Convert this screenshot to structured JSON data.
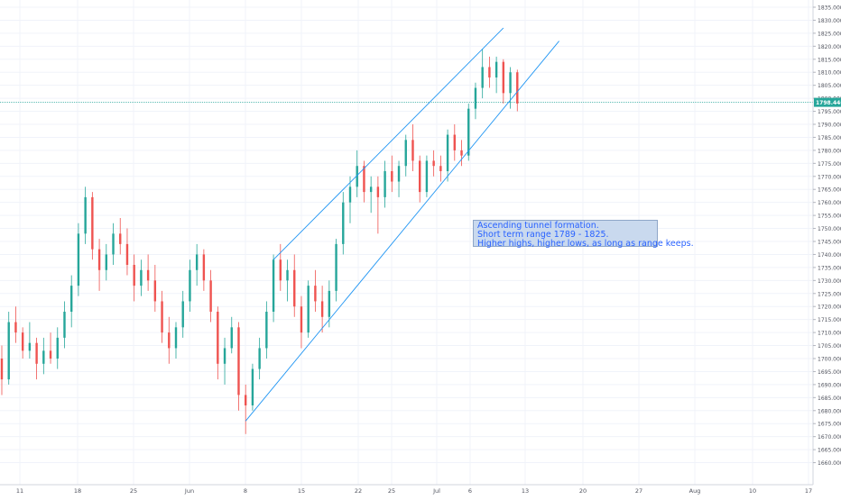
{
  "chart_data": {
    "type": "candlestick",
    "title": "",
    "instrument_value_label": "1798.446",
    "colors": {
      "up": "#26a69a",
      "down": "#ef5350",
      "trendline": "#2196f3",
      "price_line": "#26a69a"
    },
    "ylim": [
      1655,
      1835
    ],
    "y_ticks": [
      "1660.000",
      "1665.000",
      "1670.000",
      "1675.000",
      "1680.000",
      "1685.000",
      "1690.000",
      "1695.000",
      "1700.000",
      "1705.000",
      "1710.000",
      "1715.000",
      "1720.000",
      "1725.000",
      "1730.000",
      "1735.000",
      "1740.000",
      "1745.000",
      "1750.000",
      "1755.000",
      "1760.000",
      "1765.000",
      "1770.000",
      "1775.000",
      "1780.000",
      "1785.000",
      "1790.000",
      "1795.000",
      "1800.000",
      "1805.000",
      "1810.000",
      "1815.000",
      "1820.000",
      "1825.000",
      "1830.000",
      "1835.000"
    ],
    "x_tick_labels": [
      "11",
      "18",
      "25",
      "Jun",
      "8",
      "15",
      "22",
      "25",
      "Jul",
      "6",
      "13",
      "20",
      "27",
      "Aug",
      "10",
      "17"
    ],
    "current_price": 1798.446,
    "grid": true,
    "candles": [
      {
        "o": 1700,
        "h": 1705,
        "l": 1686,
        "c": 1692
      },
      {
        "o": 1692,
        "h": 1718,
        "l": 1690,
        "c": 1714
      },
      {
        "o": 1714,
        "h": 1720,
        "l": 1706,
        "c": 1710
      },
      {
        "o": 1710,
        "h": 1712,
        "l": 1700,
        "c": 1703
      },
      {
        "o": 1703,
        "h": 1714,
        "l": 1700,
        "c": 1706
      },
      {
        "o": 1706,
        "h": 1708,
        "l": 1692,
        "c": 1698
      },
      {
        "o": 1698,
        "h": 1708,
        "l": 1694,
        "c": 1703
      },
      {
        "o": 1703,
        "h": 1710,
        "l": 1698,
        "c": 1700
      },
      {
        "o": 1700,
        "h": 1712,
        "l": 1696,
        "c": 1708
      },
      {
        "o": 1708,
        "h": 1722,
        "l": 1704,
        "c": 1718
      },
      {
        "o": 1718,
        "h": 1732,
        "l": 1712,
        "c": 1728
      },
      {
        "o": 1728,
        "h": 1752,
        "l": 1724,
        "c": 1748
      },
      {
        "o": 1748,
        "h": 1766,
        "l": 1744,
        "c": 1762
      },
      {
        "o": 1762,
        "h": 1764,
        "l": 1738,
        "c": 1742
      },
      {
        "o": 1742,
        "h": 1746,
        "l": 1726,
        "c": 1734
      },
      {
        "o": 1734,
        "h": 1744,
        "l": 1730,
        "c": 1740
      },
      {
        "o": 1740,
        "h": 1752,
        "l": 1736,
        "c": 1748
      },
      {
        "o": 1748,
        "h": 1754,
        "l": 1740,
        "c": 1744
      },
      {
        "o": 1744,
        "h": 1750,
        "l": 1732,
        "c": 1736
      },
      {
        "o": 1736,
        "h": 1740,
        "l": 1722,
        "c": 1728
      },
      {
        "o": 1728,
        "h": 1738,
        "l": 1724,
        "c": 1734
      },
      {
        "o": 1734,
        "h": 1740,
        "l": 1726,
        "c": 1730
      },
      {
        "o": 1730,
        "h": 1736,
        "l": 1718,
        "c": 1722
      },
      {
        "o": 1722,
        "h": 1726,
        "l": 1706,
        "c": 1710
      },
      {
        "o": 1710,
        "h": 1716,
        "l": 1698,
        "c": 1704
      },
      {
        "o": 1704,
        "h": 1714,
        "l": 1700,
        "c": 1712
      },
      {
        "o": 1712,
        "h": 1726,
        "l": 1708,
        "c": 1722
      },
      {
        "o": 1722,
        "h": 1738,
        "l": 1718,
        "c": 1734
      },
      {
        "o": 1734,
        "h": 1744,
        "l": 1728,
        "c": 1740
      },
      {
        "o": 1740,
        "h": 1742,
        "l": 1726,
        "c": 1730
      },
      {
        "o": 1730,
        "h": 1734,
        "l": 1714,
        "c": 1718
      },
      {
        "o": 1718,
        "h": 1720,
        "l": 1692,
        "c": 1698
      },
      {
        "o": 1698,
        "h": 1708,
        "l": 1690,
        "c": 1704
      },
      {
        "o": 1704,
        "h": 1716,
        "l": 1702,
        "c": 1712
      },
      {
        "o": 1712,
        "h": 1714,
        "l": 1680,
        "c": 1686
      },
      {
        "o": 1686,
        "h": 1690,
        "l": 1671,
        "c": 1682
      },
      {
        "o": 1682,
        "h": 1698,
        "l": 1680,
        "c": 1696
      },
      {
        "o": 1696,
        "h": 1708,
        "l": 1692,
        "c": 1704
      },
      {
        "o": 1704,
        "h": 1722,
        "l": 1700,
        "c": 1718
      },
      {
        "o": 1718,
        "h": 1740,
        "l": 1714,
        "c": 1738
      },
      {
        "o": 1738,
        "h": 1744,
        "l": 1726,
        "c": 1730
      },
      {
        "o": 1730,
        "h": 1738,
        "l": 1722,
        "c": 1734
      },
      {
        "o": 1734,
        "h": 1740,
        "l": 1716,
        "c": 1720
      },
      {
        "o": 1720,
        "h": 1724,
        "l": 1704,
        "c": 1710
      },
      {
        "o": 1710,
        "h": 1730,
        "l": 1708,
        "c": 1728
      },
      {
        "o": 1728,
        "h": 1734,
        "l": 1718,
        "c": 1722
      },
      {
        "o": 1722,
        "h": 1728,
        "l": 1710,
        "c": 1716
      },
      {
        "o": 1716,
        "h": 1730,
        "l": 1712,
        "c": 1726
      },
      {
        "o": 1726,
        "h": 1746,
        "l": 1722,
        "c": 1744
      },
      {
        "o": 1744,
        "h": 1764,
        "l": 1740,
        "c": 1760
      },
      {
        "o": 1760,
        "h": 1770,
        "l": 1752,
        "c": 1766
      },
      {
        "o": 1766,
        "h": 1780,
        "l": 1762,
        "c": 1774
      },
      {
        "o": 1774,
        "h": 1776,
        "l": 1760,
        "c": 1764
      },
      {
        "o": 1764,
        "h": 1770,
        "l": 1756,
        "c": 1766
      },
      {
        "o": 1766,
        "h": 1770,
        "l": 1748,
        "c": 1762
      },
      {
        "o": 1762,
        "h": 1776,
        "l": 1758,
        "c": 1772
      },
      {
        "o": 1772,
        "h": 1778,
        "l": 1764,
        "c": 1768
      },
      {
        "o": 1768,
        "h": 1776,
        "l": 1762,
        "c": 1774
      },
      {
        "o": 1774,
        "h": 1786,
        "l": 1770,
        "c": 1784
      },
      {
        "o": 1784,
        "h": 1790,
        "l": 1772,
        "c": 1776
      },
      {
        "o": 1776,
        "h": 1778,
        "l": 1760,
        "c": 1764
      },
      {
        "o": 1764,
        "h": 1778,
        "l": 1762,
        "c": 1776
      },
      {
        "o": 1776,
        "h": 1780,
        "l": 1770,
        "c": 1774
      },
      {
        "o": 1774,
        "h": 1778,
        "l": 1768,
        "c": 1772
      },
      {
        "o": 1772,
        "h": 1788,
        "l": 1768,
        "c": 1786
      },
      {
        "o": 1786,
        "h": 1790,
        "l": 1776,
        "c": 1780
      },
      {
        "o": 1780,
        "h": 1784,
        "l": 1774,
        "c": 1778
      },
      {
        "o": 1778,
        "h": 1798,
        "l": 1776,
        "c": 1796
      },
      {
        "o": 1796,
        "h": 1806,
        "l": 1792,
        "c": 1804
      },
      {
        "o": 1804,
        "h": 1819,
        "l": 1800,
        "c": 1812
      },
      {
        "o": 1812,
        "h": 1816,
        "l": 1804,
        "c": 1808
      },
      {
        "o": 1808,
        "h": 1816,
        "l": 1802,
        "c": 1814
      },
      {
        "o": 1814,
        "h": 1815,
        "l": 1798,
        "c": 1802
      },
      {
        "o": 1802,
        "h": 1812,
        "l": 1796,
        "c": 1810
      },
      {
        "o": 1810,
        "h": 1811,
        "l": 1795,
        "c": 1798
      }
    ],
    "trendlines": [
      {
        "name": "upper-channel-line",
        "from": {
          "bar": 39,
          "price": 1738
        },
        "to": {
          "bar": 72,
          "price": 1827
        }
      },
      {
        "name": "lower-channel-line",
        "from": {
          "bar": 35,
          "price": 1676
        },
        "to": {
          "bar": 80,
          "price": 1822
        }
      }
    ],
    "annotation": {
      "lines": [
        "Ascending tunnel formation.",
        "Short term range 1789 - 1825.",
        "Higher highs, higher lows, as long as range keeps."
      ]
    }
  }
}
